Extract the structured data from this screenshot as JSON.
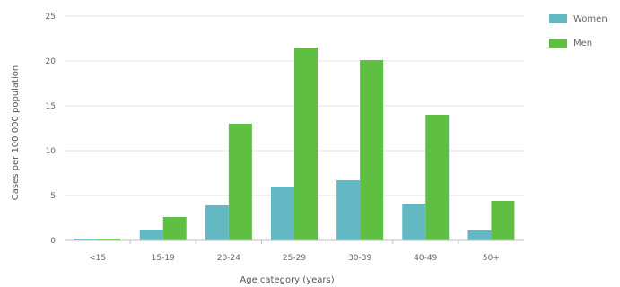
{
  "chart_data": {
    "type": "bar",
    "title": "",
    "xlabel": "Age category (years)",
    "ylabel": "Cases per 100 000 population",
    "categories": [
      "<15",
      "15-19",
      "20-24",
      "25-29",
      "30-39",
      "40-49",
      "50+"
    ],
    "series": [
      {
        "name": "Women",
        "color": "#62b9c3",
        "values": [
          0.2,
          1.2,
          3.9,
          6.0,
          6.7,
          4.1,
          1.1
        ]
      },
      {
        "name": "Men",
        "color": "#5fbf43",
        "values": [
          0.2,
          2.6,
          13.0,
          21.5,
          20.1,
          14.0,
          4.4
        ]
      }
    ],
    "ylim": [
      0,
      25
    ],
    "yticks": [
      0,
      5,
      10,
      15,
      20,
      25
    ],
    "grid": true,
    "legend_position": "top-right"
  }
}
